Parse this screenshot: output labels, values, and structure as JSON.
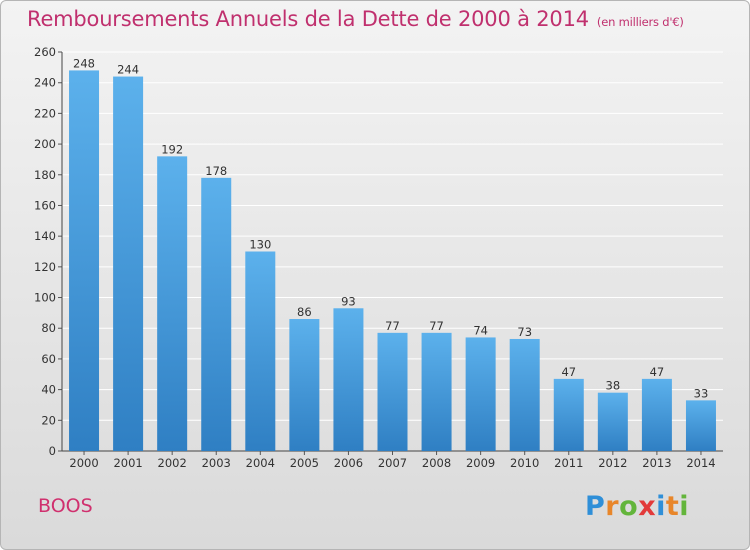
{
  "title": "Remboursements Annuels de la Dette de 2000 à 2014",
  "unit_note": "(en milliers d'€)",
  "commune": "BOOS",
  "logo": {
    "text": "Proxiti",
    "letters": [
      "P",
      "r",
      "o",
      "x",
      "i",
      "t",
      "i"
    ],
    "colors": [
      "#2f8fd8",
      "#e8862a",
      "#63b53b",
      "#e23a3a",
      "#2f8fd8",
      "#e8862a",
      "#63b53b"
    ]
  },
  "colors": {
    "title": "#c0306e",
    "bar_top": "#5cb1ec",
    "bar_bottom": "#2f7fc3",
    "grid": "#ffffff",
    "axis_text": "#333333"
  },
  "chart_data": {
    "type": "bar",
    "categories": [
      "2000",
      "2001",
      "2002",
      "2003",
      "2004",
      "2005",
      "2006",
      "2007",
      "2008",
      "2009",
      "2010",
      "2011",
      "2012",
      "2013",
      "2014"
    ],
    "values": [
      248,
      244,
      192,
      178,
      130,
      86,
      93,
      77,
      77,
      74,
      73,
      47,
      38,
      47,
      33
    ],
    "data_labels": [
      "248",
      "244",
      "192",
      "178",
      "130",
      "86",
      "93",
      "77",
      "77",
      "74",
      "73",
      "47",
      "38",
      "47",
      "33"
    ],
    "y_ticks": [
      0,
      20,
      40,
      60,
      80,
      100,
      120,
      140,
      160,
      180,
      200,
      220,
      240,
      260
    ],
    "ylim": [
      0,
      260
    ],
    "grid": true,
    "title": "Remboursements Annuels de la Dette de 2000 à 2014",
    "xlabel": "",
    "ylabel": ""
  }
}
